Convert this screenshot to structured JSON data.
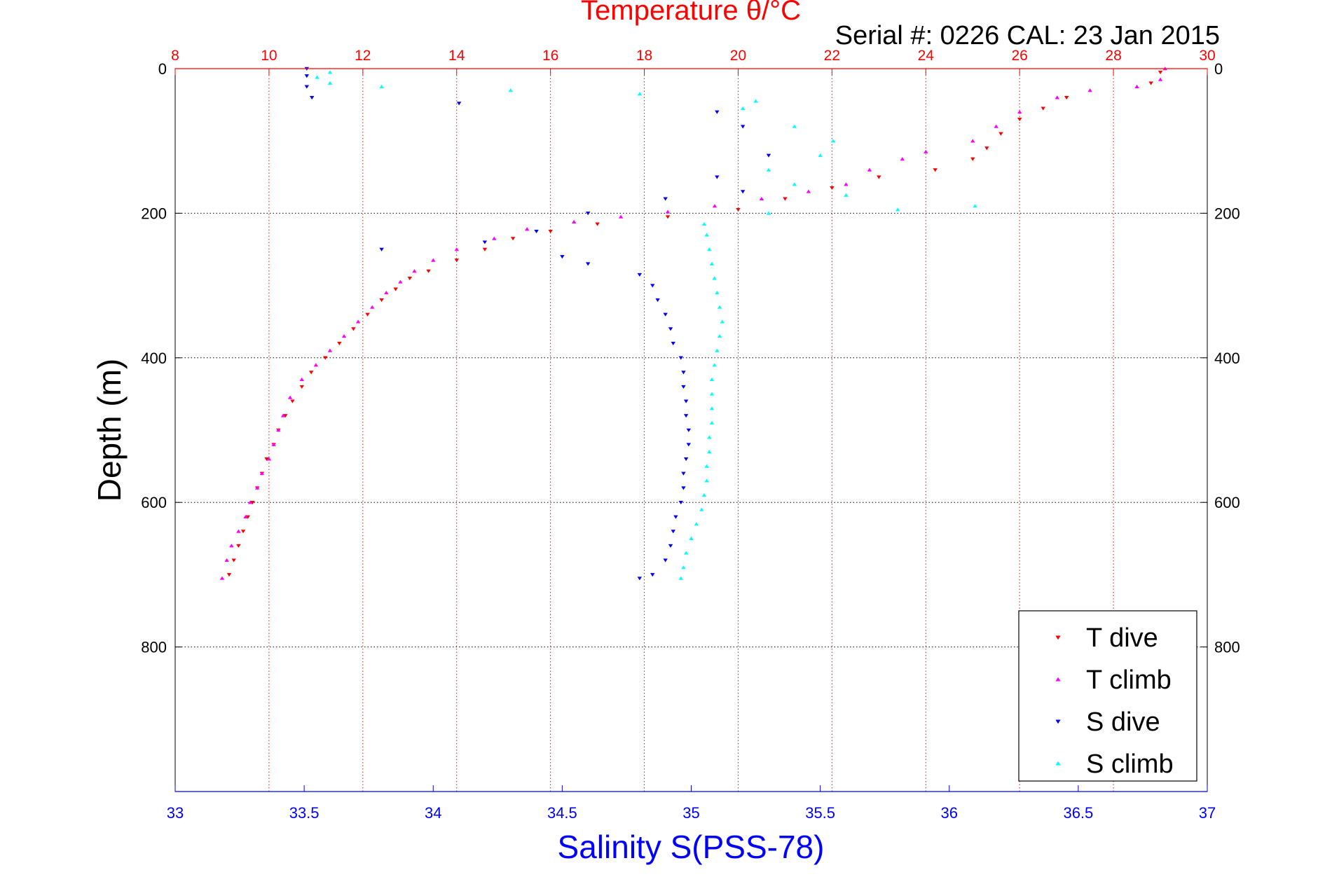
{
  "chart_data": {
    "type": "scatter",
    "title": "Temperature θ/°C",
    "subtitle": "Serial #: 0226  CAL: 23 Jan 2015",
    "xlabel": "Salinity S(PSS-78)",
    "ylabel": "Depth (m)",
    "x_bottom": {
      "label": "Salinity S(PSS-78)",
      "lim": [
        33,
        37
      ],
      "ticks": [
        "33",
        "33.5",
        "34",
        "34.5",
        "35",
        "35.5",
        "36",
        "36.5",
        "37"
      ],
      "color": "#0000ff"
    },
    "x_top": {
      "label": "Temperature θ/°C",
      "lim": [
        8,
        30
      ],
      "ticks": [
        "8",
        "10",
        "12",
        "14",
        "16",
        "18",
        "20",
        "22",
        "24",
        "26",
        "28",
        "30"
      ],
      "color": "#ff0000"
    },
    "y": {
      "lim": [
        0,
        1000
      ],
      "reversed": true,
      "ticks_left": [
        "0",
        "200",
        "400",
        "600",
        "800"
      ],
      "ticks_right": [
        "0",
        "200",
        "400",
        "600",
        "800"
      ]
    },
    "grid": true,
    "legend_position": "bottom-right",
    "series": [
      {
        "name": "T dive",
        "axis": "temperature",
        "color": "#ff0000",
        "marker": "triangle-down",
        "points": [
          [
            29.0,
            5
          ],
          [
            28.8,
            20
          ],
          [
            27.0,
            40
          ],
          [
            26.5,
            55
          ],
          [
            26.0,
            70
          ],
          [
            25.6,
            90
          ],
          [
            25.3,
            110
          ],
          [
            25.0,
            125
          ],
          [
            24.2,
            140
          ],
          [
            23.0,
            150
          ],
          [
            22.0,
            165
          ],
          [
            21.0,
            180
          ],
          [
            20.0,
            195
          ],
          [
            18.5,
            205
          ],
          [
            17.0,
            215
          ],
          [
            16.0,
            225
          ],
          [
            15.2,
            235
          ],
          [
            14.6,
            250
          ],
          [
            14.0,
            265
          ],
          [
            13.4,
            280
          ],
          [
            13.0,
            290
          ],
          [
            12.7,
            305
          ],
          [
            12.4,
            320
          ],
          [
            12.1,
            340
          ],
          [
            11.8,
            360
          ],
          [
            11.5,
            380
          ],
          [
            11.2,
            400
          ],
          [
            10.9,
            420
          ],
          [
            10.7,
            440
          ],
          [
            10.5,
            460
          ],
          [
            10.35,
            480
          ],
          [
            10.2,
            500
          ],
          [
            10.1,
            520
          ],
          [
            9.95,
            540
          ],
          [
            9.85,
            560
          ],
          [
            9.75,
            580
          ],
          [
            9.65,
            600
          ],
          [
            9.55,
            620
          ],
          [
            9.45,
            640
          ],
          [
            9.35,
            660
          ],
          [
            9.25,
            680
          ],
          [
            9.15,
            700
          ]
        ]
      },
      {
        "name": "T climb",
        "axis": "temperature",
        "color": "#ff00ff",
        "marker": "triangle-up",
        "points": [
          [
            9.0,
            705
          ],
          [
            9.1,
            680
          ],
          [
            9.2,
            660
          ],
          [
            9.35,
            640
          ],
          [
            9.5,
            620
          ],
          [
            9.6,
            600
          ],
          [
            9.75,
            580
          ],
          [
            9.85,
            560
          ],
          [
            10.0,
            540
          ],
          [
            10.1,
            520
          ],
          [
            10.2,
            500
          ],
          [
            10.3,
            480
          ],
          [
            10.45,
            455
          ],
          [
            10.7,
            430
          ],
          [
            11.0,
            410
          ],
          [
            11.3,
            390
          ],
          [
            11.6,
            370
          ],
          [
            11.9,
            350
          ],
          [
            12.2,
            330
          ],
          [
            12.5,
            310
          ],
          [
            12.8,
            295
          ],
          [
            13.1,
            280
          ],
          [
            13.5,
            265
          ],
          [
            14.0,
            250
          ],
          [
            14.8,
            235
          ],
          [
            15.5,
            222
          ],
          [
            16.5,
            212
          ],
          [
            17.5,
            205
          ],
          [
            18.5,
            198
          ],
          [
            19.5,
            190
          ],
          [
            20.5,
            180
          ],
          [
            21.5,
            170
          ],
          [
            22.3,
            160
          ],
          [
            22.8,
            140
          ],
          [
            23.5,
            125
          ],
          [
            24.0,
            115
          ],
          [
            25.0,
            100
          ],
          [
            25.5,
            80
          ],
          [
            26.0,
            60
          ],
          [
            26.8,
            40
          ],
          [
            27.5,
            30
          ],
          [
            28.5,
            25
          ],
          [
            29.0,
            15
          ],
          [
            29.1,
            0
          ]
        ]
      },
      {
        "name": "S dive",
        "axis": "salinity",
        "color": "#0000ff",
        "marker": "triangle-down",
        "points": [
          [
            33.51,
            0
          ],
          [
            33.51,
            10
          ],
          [
            33.51,
            25
          ],
          [
            33.53,
            40
          ],
          [
            34.1,
            48
          ],
          [
            35.1,
            60
          ],
          [
            35.2,
            80
          ],
          [
            35.3,
            120
          ],
          [
            35.1,
            150
          ],
          [
            35.2,
            170
          ],
          [
            34.9,
            180
          ],
          [
            34.6,
            200
          ],
          [
            34.4,
            225
          ],
          [
            34.2,
            240
          ],
          [
            33.8,
            250
          ],
          [
            34.5,
            260
          ],
          [
            34.6,
            270
          ],
          [
            34.8,
            285
          ],
          [
            34.85,
            300
          ],
          [
            34.87,
            320
          ],
          [
            34.9,
            340
          ],
          [
            34.92,
            360
          ],
          [
            34.93,
            380
          ],
          [
            34.96,
            400
          ],
          [
            34.97,
            420
          ],
          [
            34.97,
            440
          ],
          [
            34.98,
            460
          ],
          [
            34.98,
            480
          ],
          [
            34.99,
            500
          ],
          [
            34.99,
            520
          ],
          [
            34.98,
            540
          ],
          [
            34.97,
            560
          ],
          [
            34.97,
            580
          ],
          [
            34.96,
            600
          ],
          [
            34.94,
            620
          ],
          [
            34.93,
            640
          ],
          [
            34.92,
            660
          ],
          [
            34.9,
            680
          ],
          [
            34.85,
            700
          ],
          [
            34.8,
            705
          ]
        ]
      },
      {
        "name": "S climb",
        "axis": "salinity",
        "color": "#00ffff",
        "marker": "triangle-up",
        "points": [
          [
            34.96,
            705
          ],
          [
            34.97,
            690
          ],
          [
            34.98,
            670
          ],
          [
            35.0,
            650
          ],
          [
            35.02,
            630
          ],
          [
            35.04,
            610
          ],
          [
            35.05,
            590
          ],
          [
            35.06,
            570
          ],
          [
            35.06,
            550
          ],
          [
            35.07,
            530
          ],
          [
            35.07,
            510
          ],
          [
            35.08,
            490
          ],
          [
            35.08,
            470
          ],
          [
            35.08,
            450
          ],
          [
            35.08,
            430
          ],
          [
            35.09,
            410
          ],
          [
            35.1,
            390
          ],
          [
            35.11,
            370
          ],
          [
            35.12,
            350
          ],
          [
            35.11,
            330
          ],
          [
            35.1,
            310
          ],
          [
            35.09,
            290
          ],
          [
            35.08,
            270
          ],
          [
            35.07,
            250
          ],
          [
            35.06,
            230
          ],
          [
            35.05,
            215
          ],
          [
            35.3,
            200
          ],
          [
            35.8,
            195
          ],
          [
            36.1,
            190
          ],
          [
            35.6,
            175
          ],
          [
            35.4,
            160
          ],
          [
            35.3,
            140
          ],
          [
            35.5,
            120
          ],
          [
            35.55,
            100
          ],
          [
            35.4,
            80
          ],
          [
            35.2,
            55
          ],
          [
            35.25,
            45
          ],
          [
            34.8,
            35
          ],
          [
            34.3,
            30
          ],
          [
            33.8,
            25
          ],
          [
            33.6,
            20
          ],
          [
            33.55,
            12
          ],
          [
            33.6,
            5
          ]
        ]
      }
    ]
  }
}
